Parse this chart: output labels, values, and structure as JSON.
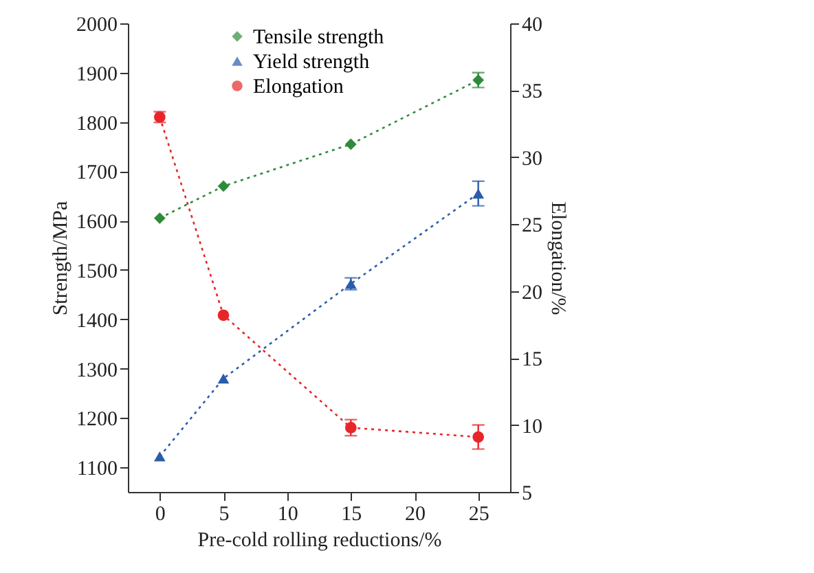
{
  "chart_data": {
    "type": "line",
    "xlabel": "Pre-cold rolling reductions/%",
    "ylabel": "Strength/MPa",
    "y2label": "Elongation/%",
    "x": [
      0,
      5,
      15,
      25
    ],
    "xlim": [
      -2.5,
      27.5
    ],
    "xticks": [
      0,
      5,
      10,
      15,
      20,
      25
    ],
    "ylim": [
      1050,
      2000
    ],
    "yticks": [
      1100,
      1200,
      1300,
      1400,
      1500,
      1600,
      1700,
      1800,
      1900,
      2000
    ],
    "y2lim": [
      5,
      40
    ],
    "y2ticks": [
      5,
      10,
      15,
      20,
      25,
      30,
      35,
      40
    ],
    "grid": false,
    "legend": "top",
    "line_style": "dotted",
    "series": [
      {
        "name": "Tensile strength",
        "color": "#2e8b3a",
        "marker": "diamond",
        "values": [
          1605,
          1670,
          1755,
          1885
        ],
        "errors": [
          null,
          null,
          null,
          15
        ]
      },
      {
        "name": "Yield strength",
        "color": "#2a5caa",
        "marker": "triangle",
        "values": [
          1122,
          1280,
          1472,
          1655
        ],
        "errors": [
          null,
          null,
          12,
          25
        ]
      },
      {
        "name": "Elongation",
        "color": "#e8262a",
        "marker": "circle",
        "axis": "y2",
        "values": [
          33.0,
          18.2,
          9.8,
          9.1
        ],
        "errors": [
          0.4,
          null,
          0.6,
          0.9
        ]
      }
    ]
  }
}
